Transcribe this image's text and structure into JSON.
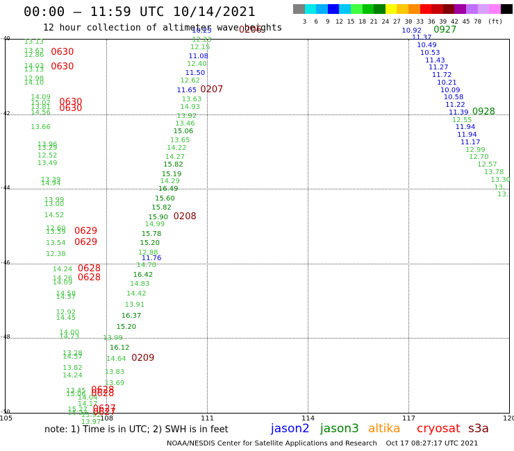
{
  "header": {
    "title": "00:00 – 11:59 UTC 10/14/2021",
    "subtitle": "12 hour collection of altimeter wave heights"
  },
  "colorbar": {
    "colors": [
      "#808080",
      "#00e8e8",
      "#00b0ff",
      "#0000ff",
      "#00c8ff",
      "#40ff40",
      "#00c000",
      "#008000",
      "#ffff00",
      "#ffc800",
      "#ff8c00",
      "#ff0000",
      "#c80000",
      "#800000",
      "#a000a0",
      "#c070ff",
      "#d8a0ff",
      "#ff80ff",
      "#000000"
    ],
    "labels": [
      "3",
      "6",
      "9",
      "12",
      "15",
      "18",
      "21",
      "24",
      "27",
      "30",
      "33",
      "36",
      "39",
      "42",
      "45",
      "70"
    ],
    "unit": "(ft)"
  },
  "chart_data": {
    "type": "scatter",
    "xlim": [
      105,
      120
    ],
    "ylim": [
      -50,
      -40
    ],
    "x_ticks": [
      "105",
      "108",
      "111",
      "114",
      "117",
      "120"
    ],
    "y_ticks": [
      "-40",
      "-42",
      "-44",
      "-46",
      "-48",
      "-50"
    ],
    "grid": true,
    "wave_height_labels": [
      {
        "x": 105.55,
        "y": -40.05,
        "v": "13.13",
        "c": "#40c040"
      },
      {
        "x": 105.55,
        "y": -40.3,
        "v": "13.63",
        "c": "#40c040"
      },
      {
        "x": 105.55,
        "y": -40.4,
        "v": "12.86",
        "c": "#40c040"
      },
      {
        "x": 105.55,
        "y": -40.7,
        "v": "14.03",
        "c": "#40c040"
      },
      {
        "x": 105.55,
        "y": -40.8,
        "v": "13.13",
        "c": "#40c040"
      },
      {
        "x": 105.55,
        "y": -41.05,
        "v": "12.98",
        "c": "#40c040"
      },
      {
        "x": 105.55,
        "y": -41.15,
        "v": "14.10",
        "c": "#40c040"
      },
      {
        "x": 105.75,
        "y": -41.55,
        "v": "14.09",
        "c": "#40c040"
      },
      {
        "x": 105.75,
        "y": -41.7,
        "v": "15.02",
        "c": "#40c040"
      },
      {
        "x": 105.75,
        "y": -41.8,
        "v": "13.81",
        "c": "#40c040"
      },
      {
        "x": 105.75,
        "y": -41.95,
        "v": "14.56",
        "c": "#40c040"
      },
      {
        "x": 105.75,
        "y": -42.35,
        "v": "13.66",
        "c": "#40c040"
      },
      {
        "x": 105.95,
        "y": -42.8,
        "v": "13.96",
        "c": "#40c040"
      },
      {
        "x": 105.95,
        "y": -42.9,
        "v": "13.29",
        "c": "#40c040"
      },
      {
        "x": 105.95,
        "y": -43.1,
        "v": "12.52",
        "c": "#40c040"
      },
      {
        "x": 105.95,
        "y": -43.3,
        "v": "13.49",
        "c": "#40c040"
      },
      {
        "x": 106.05,
        "y": -43.75,
        "v": "13.39",
        "c": "#40c040"
      },
      {
        "x": 106.05,
        "y": -43.85,
        "v": "14.94",
        "c": "#40c040"
      },
      {
        "x": 106.15,
        "y": -44.3,
        "v": "13.99",
        "c": "#40c040"
      },
      {
        "x": 106.15,
        "y": -44.4,
        "v": "13.00",
        "c": "#40c040"
      },
      {
        "x": 106.15,
        "y": -44.7,
        "v": "14.52",
        "c": "#40c040"
      },
      {
        "x": 106.2,
        "y": -45.05,
        "v": "12.60",
        "c": "#40c040"
      },
      {
        "x": 106.2,
        "y": -45.15,
        "v": "13.59",
        "c": "#40c040"
      },
      {
        "x": 106.2,
        "y": -45.45,
        "v": "13.54",
        "c": "#40c040"
      },
      {
        "x": 106.2,
        "y": -45.75,
        "v": "12.38",
        "c": "#40c040"
      },
      {
        "x": 106.4,
        "y": -46.15,
        "v": "14.24",
        "c": "#40c040"
      },
      {
        "x": 106.4,
        "y": -46.4,
        "v": "14.26",
        "c": "#40c040"
      },
      {
        "x": 106.4,
        "y": -46.5,
        "v": "14.09",
        "c": "#40c040"
      },
      {
        "x": 106.5,
        "y": -46.8,
        "v": "14.58",
        "c": "#40c040"
      },
      {
        "x": 106.5,
        "y": -46.9,
        "v": "14.37",
        "c": "#40c040"
      },
      {
        "x": 106.5,
        "y": -47.3,
        "v": "12.92",
        "c": "#40c040"
      },
      {
        "x": 106.5,
        "y": -47.45,
        "v": "14.45",
        "c": "#40c040"
      },
      {
        "x": 106.6,
        "y": -47.85,
        "v": "14.00",
        "c": "#40c040"
      },
      {
        "x": 106.6,
        "y": -47.95,
        "v": "14.73",
        "c": "#40c040"
      },
      {
        "x": 106.7,
        "y": -48.4,
        "v": "13.28",
        "c": "#40c040"
      },
      {
        "x": 106.7,
        "y": -48.5,
        "v": "14.57",
        "c": "#40c040"
      },
      {
        "x": 106.7,
        "y": -48.8,
        "v": "13.82",
        "c": "#40c040"
      },
      {
        "x": 106.7,
        "y": -49.0,
        "v": "14.24",
        "c": "#40c040"
      },
      {
        "x": 106.8,
        "y": -49.4,
        "v": "13.45",
        "c": "#40c040"
      },
      {
        "x": 106.8,
        "y": -49.5,
        "v": "15.06",
        "c": "#40c040"
      },
      {
        "x": 106.85,
        "y": -49.9,
        "v": "15.27",
        "c": "#40c040"
      },
      {
        "x": 106.85,
        "y": -50.0,
        "v": "15.23",
        "c": "#40c040"
      },
      {
        "x": 107.15,
        "y": -49.6,
        "v": "14.04",
        "c": "#40c040"
      },
      {
        "x": 107.15,
        "y": -49.75,
        "v": "14.17",
        "c": "#40c040"
      },
      {
        "x": 107.25,
        "y": -50.05,
        "v": "13.92",
        "c": "#40c040"
      },
      {
        "x": 107.25,
        "y": -50.25,
        "v": "13.97",
        "c": "#40c040"
      },
      {
        "x": 107.9,
        "y": -48.0,
        "v": "13.99",
        "c": "#40c040"
      },
      {
        "x": 108.1,
        "y": -48.25,
        "v": "16.12",
        "c": "#008000"
      },
      {
        "x": 108.0,
        "y": -48.55,
        "v": "14.64",
        "c": "#40c040"
      },
      {
        "x": 107.95,
        "y": -48.9,
        "v": "13.83",
        "c": "#40c040"
      },
      {
        "x": 107.95,
        "y": -49.2,
        "v": "13.69",
        "c": "#40c040"
      },
      {
        "x": 108.3,
        "y": -47.7,
        "v": "15.20",
        "c": "#008000"
      },
      {
        "x": 108.45,
        "y": -47.4,
        "v": "16.37",
        "c": "#008000"
      },
      {
        "x": 108.55,
        "y": -47.1,
        "v": "13.91",
        "c": "#40c040"
      },
      {
        "x": 108.6,
        "y": -46.8,
        "v": "14.42",
        "c": "#40c040"
      },
      {
        "x": 108.7,
        "y": -46.55,
        "v": "14.83",
        "c": "#40c040"
      },
      {
        "x": 108.8,
        "y": -46.3,
        "v": "16.42",
        "c": "#008000"
      },
      {
        "x": 108.9,
        "y": -46.05,
        "v": "14.70",
        "c": "#40c040"
      },
      {
        "x": 109.05,
        "y": -45.85,
        "v": "11.76",
        "c": "#0000d0"
      },
      {
        "x": 108.95,
        "y": -45.7,
        "v": "12.88",
        "c": "#40c040"
      },
      {
        "x": 109.0,
        "y": -45.45,
        "v": "15.20",
        "c": "#008000"
      },
      {
        "x": 109.05,
        "y": -45.2,
        "v": "15.78",
        "c": "#008000"
      },
      {
        "x": 109.15,
        "y": -44.95,
        "v": "14.99",
        "c": "#40c040"
      },
      {
        "x": 109.25,
        "y": -44.75,
        "v": "15.90",
        "c": "#008000"
      },
      {
        "x": 109.35,
        "y": -44.5,
        "v": "15.82",
        "c": "#008000"
      },
      {
        "x": 109.45,
        "y": -44.25,
        "v": "15.60",
        "c": "#008000"
      },
      {
        "x": 109.55,
        "y": -44.0,
        "v": "16.49",
        "c": "#008000"
      },
      {
        "x": 109.6,
        "y": -43.8,
        "v": "14.29",
        "c": "#40c040"
      },
      {
        "x": 109.65,
        "y": -43.6,
        "v": "15.19",
        "c": "#008000"
      },
      {
        "x": 109.7,
        "y": -43.35,
        "v": "15.82",
        "c": "#008000"
      },
      {
        "x": 109.75,
        "y": -43.15,
        "v": "14.27",
        "c": "#40c040"
      },
      {
        "x": 109.8,
        "y": -42.9,
        "v": "14.22",
        "c": "#40c040"
      },
      {
        "x": 109.9,
        "y": -42.7,
        "v": "13.65",
        "c": "#40c040"
      },
      {
        "x": 110.0,
        "y": -42.45,
        "v": "15.06",
        "c": "#008000"
      },
      {
        "x": 110.05,
        "y": -42.25,
        "v": "13.46",
        "c": "#40c040"
      },
      {
        "x": 110.1,
        "y": -42.05,
        "v": "13.92",
        "c": "#40c040"
      },
      {
        "x": 110.2,
        "y": -41.8,
        "v": "14.93",
        "c": "#40c040"
      },
      {
        "x": 110.25,
        "y": -41.6,
        "v": "13.63",
        "c": "#40c040"
      },
      {
        "x": 110.1,
        "y": -41.35,
        "v": "11.65",
        "c": "#0000d0"
      },
      {
        "x": 110.2,
        "y": -41.1,
        "v": "12.62",
        "c": "#40c040"
      },
      {
        "x": 110.35,
        "y": -40.9,
        "v": "11.50",
        "c": "#0000d0"
      },
      {
        "x": 110.4,
        "y": -40.65,
        "v": "12.40",
        "c": "#40c040"
      },
      {
        "x": 110.45,
        "y": -40.45,
        "v": "11.08",
        "c": "#0000d0"
      },
      {
        "x": 110.5,
        "y": -40.2,
        "v": "12.15",
        "c": "#40c040"
      },
      {
        "x": 110.55,
        "y": -40.0,
        "v": "12.23",
        "c": "#40c040"
      },
      {
        "x": 110.55,
        "y": -39.75,
        "v": "10.23",
        "c": "#0000d0"
      },
      {
        "x": 116.8,
        "y": -39.75,
        "v": "10.92",
        "c": "#0000d0"
      },
      {
        "x": 117.1,
        "y": -39.95,
        "v": "11.37",
        "c": "#0000d0"
      },
      {
        "x": 117.25,
        "y": -40.15,
        "v": "10.49",
        "c": "#0000d0"
      },
      {
        "x": 117.35,
        "y": -40.35,
        "v": "10.53",
        "c": "#0000d0"
      },
      {
        "x": 117.5,
        "y": -40.55,
        "v": "11.43",
        "c": "#0000d0"
      },
      {
        "x": 117.6,
        "y": -40.75,
        "v": "11.27",
        "c": "#0000d0"
      },
      {
        "x": 117.7,
        "y": -40.95,
        "v": "11.72",
        "c": "#0000d0"
      },
      {
        "x": 117.85,
        "y": -41.15,
        "v": "10.21",
        "c": "#0000d0"
      },
      {
        "x": 117.95,
        "y": -41.35,
        "v": "10.09",
        "c": "#0000d0"
      },
      {
        "x": 118.05,
        "y": -41.55,
        "v": "10.58",
        "c": "#0000d0"
      },
      {
        "x": 118.1,
        "y": -41.75,
        "v": "11.22",
        "c": "#0000d0"
      },
      {
        "x": 118.2,
        "y": -41.95,
        "v": "11.39",
        "c": "#0000d0"
      },
      {
        "x": 118.3,
        "y": -42.15,
        "v": "12.55",
        "c": "#40c040"
      },
      {
        "x": 118.4,
        "y": -42.35,
        "v": "11.94",
        "c": "#0000d0"
      },
      {
        "x": 118.45,
        "y": -42.55,
        "v": "11.94",
        "c": "#0000d0"
      },
      {
        "x": 118.55,
        "y": -42.75,
        "v": "11.17",
        "c": "#0000d0"
      },
      {
        "x": 118.7,
        "y": -42.95,
        "v": "12.99",
        "c": "#40c040"
      },
      {
        "x": 118.8,
        "y": -43.15,
        "v": "12.70",
        "c": "#40c040"
      },
      {
        "x": 119.05,
        "y": -43.35,
        "v": "12.57",
        "c": "#40c040"
      },
      {
        "x": 119.25,
        "y": -43.55,
        "v": "13.78",
        "c": "#40c040"
      },
      {
        "x": 119.45,
        "y": -43.75,
        "v": "13.30",
        "c": "#40c040"
      },
      {
        "x": 119.55,
        "y": -43.95,
        "v": "13.",
        "c": "#40c040"
      },
      {
        "x": 119.65,
        "y": -44.15,
        "v": "13.",
        "c": "#40c040"
      }
    ],
    "time_labels": [
      {
        "x": 106.35,
        "y": -40.35,
        "v": "0630",
        "c": "#e00000"
      },
      {
        "x": 106.35,
        "y": -40.75,
        "v": "0630",
        "c": "#e00000"
      },
      {
        "x": 106.6,
        "y": -41.7,
        "v": "0630",
        "c": "#e00000"
      },
      {
        "x": 106.6,
        "y": -41.85,
        "v": "0630",
        "c": "#e00000"
      },
      {
        "x": 107.05,
        "y": -45.15,
        "v": "0629",
        "c": "#e00000"
      },
      {
        "x": 107.05,
        "y": -45.45,
        "v": "0629",
        "c": "#e00000"
      },
      {
        "x": 107.15,
        "y": -46.15,
        "v": "0628",
        "c": "#e00000"
      },
      {
        "x": 107.15,
        "y": -46.4,
        "v": "0628",
        "c": "#e00000"
      },
      {
        "x": 107.55,
        "y": -49.4,
        "v": "0628",
        "c": "#e00000"
      },
      {
        "x": 107.55,
        "y": -49.5,
        "v": "0628",
        "c": "#e00000"
      },
      {
        "x": 107.6,
        "y": -49.9,
        "v": "0627",
        "c": "#e00000"
      },
      {
        "x": 107.6,
        "y": -50.0,
        "v": "0627",
        "c": "#e00000"
      },
      {
        "x": 111.95,
        "y": -39.75,
        "v": "0206",
        "c": "#800000"
      },
      {
        "x": 110.8,
        "y": -41.35,
        "v": "0207",
        "c": "#800000"
      },
      {
        "x": 110.0,
        "y": -44.75,
        "v": "0208",
        "c": "#800000"
      },
      {
        "x": 108.75,
        "y": -48.55,
        "v": "0209",
        "c": "#800000"
      },
      {
        "x": 117.75,
        "y": -39.75,
        "v": "0927",
        "c": "#008000"
      },
      {
        "x": 118.9,
        "y": -41.95,
        "v": "0928",
        "c": "#008000"
      }
    ]
  },
  "note": "note: 1) Time is in UTC; 2) SWH is in feet",
  "legend": [
    {
      "name": "jason2",
      "color": "#0000ff"
    },
    {
      "name": "jason3",
      "color": "#008000"
    },
    {
      "name": "altika",
      "color": "#ff8c00"
    },
    {
      "name": "cryosat",
      "color": "#ff0000"
    },
    {
      "name": "s3a",
      "color": "#800000"
    }
  ],
  "footer": {
    "credit": "NOAA/NESDIS Center for Satellite Applications and Research",
    "timestamp": "Oct 17 08:27:17 UTC 2021"
  }
}
